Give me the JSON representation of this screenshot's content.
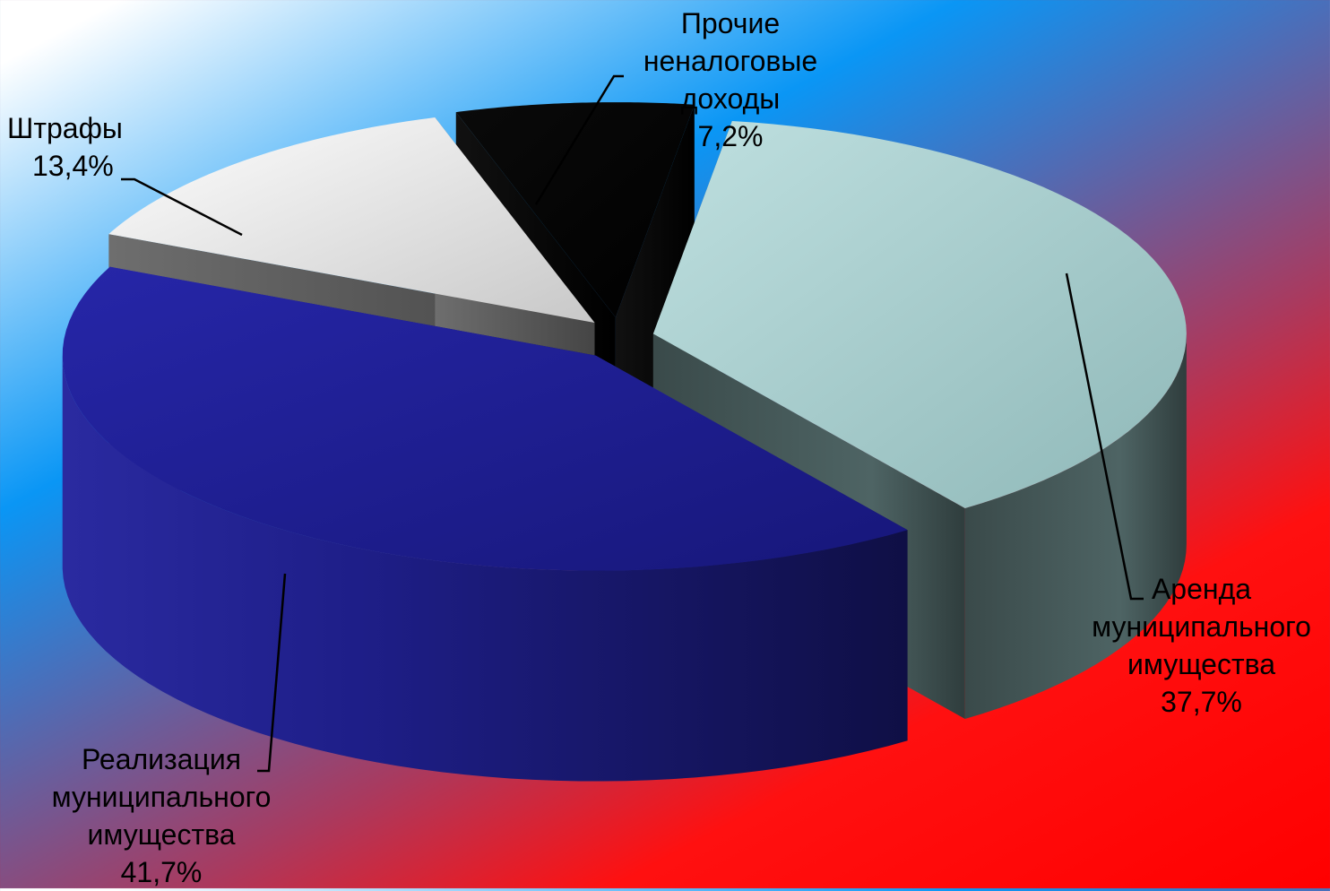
{
  "chart_data": {
    "type": "pie",
    "title": "",
    "slices": [
      {
        "name": "Аренда муниципального имущества",
        "lines": [
          "Аренда",
          "муниципального",
          "имущества"
        ],
        "value": 37.7,
        "value_label": "37,7%",
        "color": "#a9d0d0"
      },
      {
        "name": "Реализация муниципального имущества",
        "lines": [
          "Реализация",
          "муниципального",
          "имущества"
        ],
        "value": 41.7,
        "value_label": "41,7%",
        "color": "#1d1d8c"
      },
      {
        "name": "Штрафы",
        "lines": [
          "Штрафы"
        ],
        "value": 13.4,
        "value_label": "13,4%",
        "color": "#e2e2e2"
      },
      {
        "name": "Прочие неналоговые доходы",
        "lines": [
          "Прочие",
          "неналоговые",
          "доходы"
        ],
        "value": 7.2,
        "value_label": "7,2%",
        "color": "#000000"
      }
    ],
    "legend": "none",
    "style": "3d-exploded"
  }
}
